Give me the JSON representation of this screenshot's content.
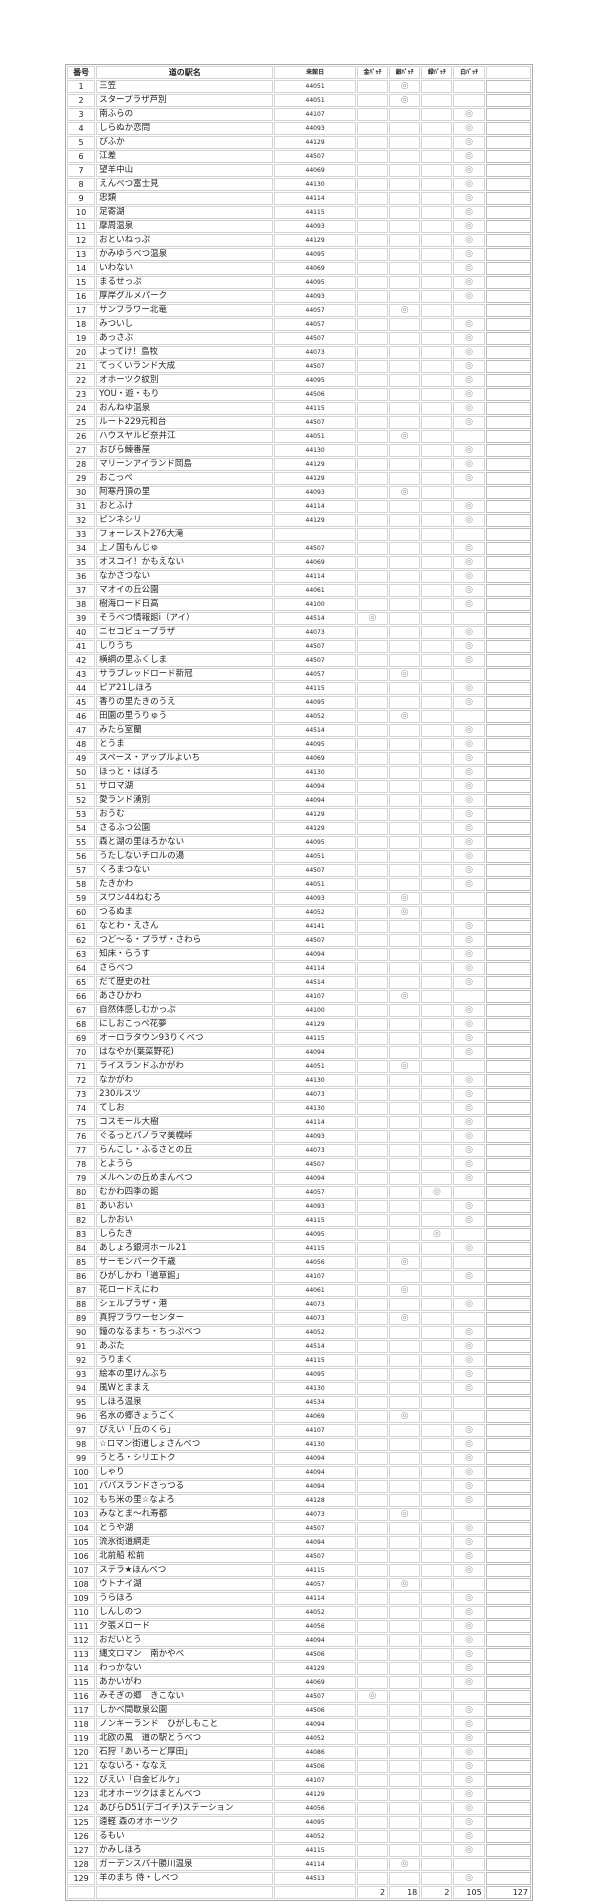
{
  "header": {
    "no": "番号",
    "name": "道の駅名",
    "date": "来館日",
    "gold": "金ﾊﾞｯﾁ",
    "silver": "銀ﾊﾞｯﾁ",
    "green": "緑ﾊﾞｯﾁ",
    "white": "白ﾊﾞｯﾁ",
    "extra": ""
  },
  "mark": "◎",
  "mark_color": "#999999",
  "badge_columns": [
    "gold",
    "silver",
    "green",
    "white"
  ],
  "rows": [
    [
      1,
      "三笠",
      "44051",
      "silver"
    ],
    [
      2,
      "スタープラザ芦別",
      "44051",
      "silver"
    ],
    [
      3,
      "南ふらの",
      "44107",
      "white"
    ],
    [
      4,
      "しらぬか恋問",
      "44093",
      "white"
    ],
    [
      5,
      "ぴふか",
      "44129",
      "white"
    ],
    [
      6,
      "江差",
      "44507",
      "white"
    ],
    [
      7,
      "望羊中山",
      "44069",
      "white"
    ],
    [
      8,
      "えんべつ富士見",
      "44130",
      "white"
    ],
    [
      9,
      "忠類",
      "44114",
      "white"
    ],
    [
      10,
      "足寄湖",
      "44115",
      "white"
    ],
    [
      11,
      "摩周温泉",
      "44093",
      "white"
    ],
    [
      12,
      "おといねっぷ",
      "44129",
      "white"
    ],
    [
      13,
      "かみゆうべつ温泉",
      "44095",
      "white"
    ],
    [
      14,
      "いわない",
      "44069",
      "white"
    ],
    [
      15,
      "まるせっぷ",
      "44095",
      "white"
    ],
    [
      16,
      "厚岸グルメパーク",
      "44093",
      "white"
    ],
    [
      17,
      "サンフラワー北竜",
      "44057",
      "silver"
    ],
    [
      18,
      "みついし",
      "44057",
      "white"
    ],
    [
      19,
      "あっさぶ",
      "44507",
      "white"
    ],
    [
      20,
      "よってけ！島牧",
      "44073",
      "white"
    ],
    [
      21,
      "てっくいランド大成",
      "44507",
      "white"
    ],
    [
      22,
      "オホーツク紋別",
      "44095",
      "white"
    ],
    [
      23,
      "YOU・遊・もり",
      "44506",
      "white"
    ],
    [
      24,
      "おんねゆ温泉",
      "44115",
      "white"
    ],
    [
      25,
      "ルート229元和台",
      "44507",
      "white"
    ],
    [
      26,
      "ハウスヤルビ奈井江",
      "44051",
      "silver"
    ],
    [
      27,
      "おびら鰊番屋",
      "44130",
      "white"
    ],
    [
      28,
      "マリーンアイランド岡島",
      "44129",
      "white"
    ],
    [
      29,
      "おこっぺ",
      "44129",
      "white"
    ],
    [
      30,
      "阿寒丹頂の里",
      "44093",
      "silver"
    ],
    [
      31,
      "おとふけ",
      "44114",
      "white"
    ],
    [
      32,
      "ピンネシリ",
      "44129",
      "white"
    ],
    [
      33,
      "フォーレスト276大滝",
      "",
      ""
    ],
    [
      34,
      "上ノ国もんじゅ",
      "44507",
      "white"
    ],
    [
      35,
      "オスコイ！かもえない",
      "44069",
      "white"
    ],
    [
      36,
      "なかさつない",
      "44114",
      "white"
    ],
    [
      37,
      "マオイの丘公園",
      "44061",
      "white"
    ],
    [
      38,
      "樹海ロード日高",
      "44100",
      "white"
    ],
    [
      39,
      "そうべつ情報館i（アイ）",
      "44514",
      "gold"
    ],
    [
      40,
      "ニセコビュープラザ",
      "44073",
      "white"
    ],
    [
      41,
      "しりうち",
      "44507",
      "white"
    ],
    [
      42,
      "横綱の里ふくしま",
      "44507",
      "white"
    ],
    [
      43,
      "サラブレッドロード新冠",
      "44057",
      "silver"
    ],
    [
      44,
      "ピア21しほろ",
      "44115",
      "white"
    ],
    [
      45,
      "香りの里たきのうえ",
      "44095",
      "white"
    ],
    [
      46,
      "田園の里うりゅう",
      "44052",
      "silver"
    ],
    [
      47,
      "みたら室蘭",
      "44514",
      "white"
    ],
    [
      48,
      "とうま",
      "44095",
      "white"
    ],
    [
      49,
      "スペース・アップルよいち",
      "44069",
      "white"
    ],
    [
      50,
      "ほっと・はぼろ",
      "44130",
      "white"
    ],
    [
      51,
      "サロマ湖",
      "44094",
      "white"
    ],
    [
      52,
      "愛ランド湧別",
      "44094",
      "white"
    ],
    [
      53,
      "おうむ",
      "44129",
      "white"
    ],
    [
      54,
      "さるふつ公園",
      "44129",
      "white"
    ],
    [
      55,
      "森と湖の里ほろかない",
      "44095",
      "white"
    ],
    [
      56,
      "うたしないチロルの湯",
      "44051",
      "white"
    ],
    [
      57,
      "くろまつない",
      "44507",
      "white"
    ],
    [
      58,
      "たきかわ",
      "44051",
      "white"
    ],
    [
      59,
      "スワン44ねむろ",
      "44093",
      "silver"
    ],
    [
      60,
      "つるぬま",
      "44052",
      "silver"
    ],
    [
      61,
      "なとわ・えさん",
      "44141",
      "white"
    ],
    [
      62,
      "つど～る・プラザ・さわら",
      "44507",
      "white"
    ],
    [
      63,
      "知床・らうす",
      "44094",
      "white"
    ],
    [
      64,
      "さらべつ",
      "44114",
      "white"
    ],
    [
      65,
      "だて歴史の杜",
      "44514",
      "white"
    ],
    [
      66,
      "あさひかわ",
      "44107",
      "silver"
    ],
    [
      67,
      "自然体感しむかっぷ",
      "44100",
      "white"
    ],
    [
      68,
      "にしおこっぺ花夢",
      "44129",
      "white"
    ],
    [
      69,
      "オーロラタウン93りくべつ",
      "44115",
      "white"
    ],
    [
      70,
      "はなやか(葉菜野花)",
      "44094",
      "white"
    ],
    [
      71,
      "ライスランドふかがわ",
      "44051",
      "silver"
    ],
    [
      72,
      "なかがわ",
      "44130",
      "white"
    ],
    [
      73,
      "230ルスツ",
      "44073",
      "white"
    ],
    [
      74,
      "てしお",
      "44130",
      "white"
    ],
    [
      75,
      "コスモール大樹",
      "44114",
      "white"
    ],
    [
      76,
      "ぐるっとパノラマ美幌峠",
      "44093",
      "white"
    ],
    [
      77,
      "らんこし・ふるさとの丘",
      "44073",
      "white"
    ],
    [
      78,
      "とようら",
      "44507",
      "white"
    ],
    [
      79,
      "メルヘンの丘めまんべつ",
      "44094",
      "white"
    ],
    [
      80,
      "むかわ四季の館",
      "44057",
      "green"
    ],
    [
      81,
      "あいおい",
      "44093",
      "white"
    ],
    [
      82,
      "しかおい",
      "44115",
      "white"
    ],
    [
      83,
      "しらたき",
      "44095",
      "green"
    ],
    [
      84,
      "あしょろ銀河ホール21",
      "44115",
      "white"
    ],
    [
      85,
      "サーモンパーク千歳",
      "44056",
      "silver"
    ],
    [
      86,
      "ひがしかわ「道草館」",
      "44107",
      "white"
    ],
    [
      87,
      "花ロードえにわ",
      "44061",
      "silver"
    ],
    [
      88,
      "シェルプラザ・港",
      "44073",
      "white"
    ],
    [
      89,
      "真狩フラワーセンター",
      "44073",
      "silver"
    ],
    [
      90,
      "鐘のなるまち・ちっぷべつ",
      "44052",
      "white"
    ],
    [
      91,
      "あぷた",
      "44514",
      "white"
    ],
    [
      92,
      "うりまく",
      "44115",
      "white"
    ],
    [
      93,
      "絵本の里けんぶち",
      "44095",
      "white"
    ],
    [
      94,
      "風Wとままえ",
      "44130",
      "white"
    ],
    [
      95,
      " しほろ温泉",
      "44534",
      ""
    ],
    [
      96,
      "名水の郷きょうごく",
      "44069",
      "silver"
    ],
    [
      97,
      "びえい「丘のくら」",
      "44107",
      "white"
    ],
    [
      98,
      "☆ロマン街道しょさんべつ",
      "44130",
      "white"
    ],
    [
      99,
      "うとろ・シリエトク",
      "44094",
      "white"
    ],
    [
      100,
      "しゃり",
      "44094",
      "white"
    ],
    [
      101,
      "パパスランドさっつる",
      "44094",
      "white"
    ],
    [
      102,
      "もち米の里☆なよろ",
      "44128",
      "white"
    ],
    [
      103,
      "みなとま～れ寿都",
      "44073",
      "silver"
    ],
    [
      104,
      "とうや湖",
      "44507",
      "white"
    ],
    [
      105,
      "流氷街道網走",
      "44094",
      "white"
    ],
    [
      106,
      "北前船 松前",
      "44507",
      "white"
    ],
    [
      107,
      "ステラ★ほんべつ",
      "44115",
      "white"
    ],
    [
      108,
      "ウトナイ湖",
      "44057",
      "silver"
    ],
    [
      109,
      "うらほろ",
      "44114",
      "white"
    ],
    [
      110,
      "しんしのつ",
      "44052",
      "white"
    ],
    [
      111,
      "夕張メロード",
      "44056",
      "white"
    ],
    [
      112,
      "おだいとう",
      "44094",
      "white"
    ],
    [
      113,
      "縄文ロマン　南かやべ",
      "44506",
      "white"
    ],
    [
      114,
      "わっかない",
      "44129",
      "white"
    ],
    [
      115,
      "あかいがわ",
      "44069",
      "white"
    ],
    [
      116,
      "みそぎの郷　きこない",
      "44507",
      "gold"
    ],
    [
      117,
      "しかべ間歇泉公園",
      "44506",
      "white"
    ],
    [
      118,
      "ノンキーランド　ひがしもこと",
      "44094",
      "white"
    ],
    [
      119,
      "北欧の風　道の駅とうべつ",
      "44052",
      "white"
    ],
    [
      120,
      "石狩「あいろーど厚田」",
      "44086",
      "white"
    ],
    [
      121,
      "なないろ・ななえ",
      "44506",
      "white"
    ],
    [
      122,
      "びえい「白金ビルケ」",
      "44107",
      "white"
    ],
    [
      123,
      "北オホーツクはまとんべつ",
      "44129",
      "white"
    ],
    [
      124,
      "あびらD51(デゴイチ)ステーション",
      "44056",
      "white"
    ],
    [
      125,
      "遠軽 森のオホーツク",
      "44095",
      "white"
    ],
    [
      126,
      "るもい",
      "44052",
      "white"
    ],
    [
      127,
      "かみしほろ",
      "44115",
      "white"
    ],
    [
      128,
      "ガーデンスパ十勝川温泉",
      "44114",
      "silver"
    ],
    [
      129,
      "羊のまち 侍・しべつ",
      "44513",
      "white"
    ]
  ],
  "totals": {
    "gold": "2",
    "silver": "18",
    "green": "2",
    "white": "105",
    "all": "127"
  }
}
